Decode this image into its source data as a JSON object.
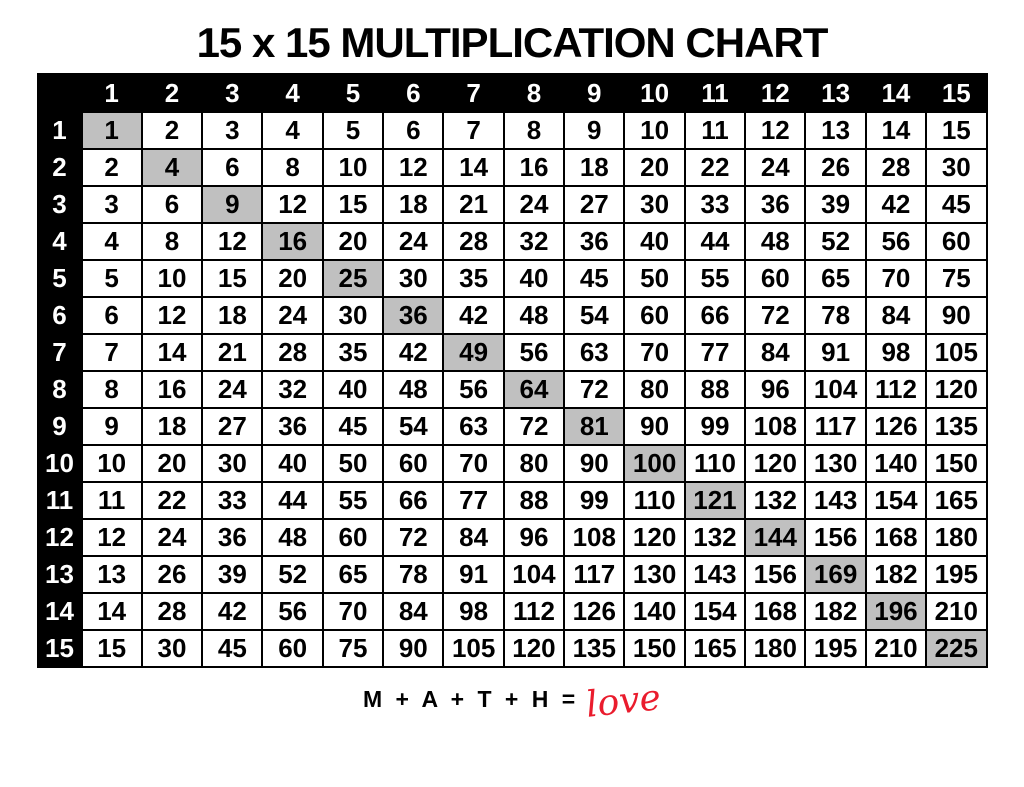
{
  "page": {
    "title": "15 x 15 MULTIPLICATION CHART"
  },
  "table": {
    "corner_label": "",
    "column_headers": [
      1,
      2,
      3,
      4,
      5,
      6,
      7,
      8,
      9,
      10,
      11,
      12,
      13,
      14,
      15
    ],
    "rows": [
      {
        "header": 1,
        "values": [
          1,
          2,
          3,
          4,
          5,
          6,
          7,
          8,
          9,
          10,
          11,
          12,
          13,
          14,
          15
        ]
      },
      {
        "header": 2,
        "values": [
          2,
          4,
          6,
          8,
          10,
          12,
          14,
          16,
          18,
          20,
          22,
          24,
          26,
          28,
          30
        ]
      },
      {
        "header": 3,
        "values": [
          3,
          6,
          9,
          12,
          15,
          18,
          21,
          24,
          27,
          30,
          33,
          36,
          39,
          42,
          45
        ]
      },
      {
        "header": 4,
        "values": [
          4,
          8,
          12,
          16,
          20,
          24,
          28,
          32,
          36,
          40,
          44,
          48,
          52,
          56,
          60
        ]
      },
      {
        "header": 5,
        "values": [
          5,
          10,
          15,
          20,
          25,
          30,
          35,
          40,
          45,
          50,
          55,
          60,
          65,
          70,
          75
        ]
      },
      {
        "header": 6,
        "values": [
          6,
          12,
          18,
          24,
          30,
          36,
          42,
          48,
          54,
          60,
          66,
          72,
          78,
          84,
          90
        ]
      },
      {
        "header": 7,
        "values": [
          7,
          14,
          21,
          28,
          35,
          42,
          49,
          56,
          63,
          70,
          77,
          84,
          91,
          98,
          105
        ]
      },
      {
        "header": 8,
        "values": [
          8,
          16,
          24,
          32,
          40,
          48,
          56,
          64,
          72,
          80,
          88,
          96,
          104,
          112,
          120
        ]
      },
      {
        "header": 9,
        "values": [
          9,
          18,
          27,
          36,
          45,
          54,
          63,
          72,
          81,
          90,
          99,
          108,
          117,
          126,
          135
        ]
      },
      {
        "header": 10,
        "values": [
          10,
          20,
          30,
          40,
          50,
          60,
          70,
          80,
          90,
          100,
          110,
          120,
          130,
          140,
          150
        ]
      },
      {
        "header": 11,
        "values": [
          11,
          22,
          33,
          44,
          55,
          66,
          77,
          88,
          99,
          110,
          121,
          132,
          143,
          154,
          165
        ]
      },
      {
        "header": 12,
        "values": [
          12,
          24,
          36,
          48,
          60,
          72,
          84,
          96,
          108,
          120,
          132,
          144,
          156,
          168,
          180
        ]
      },
      {
        "header": 13,
        "values": [
          13,
          26,
          39,
          52,
          65,
          78,
          91,
          104,
          117,
          130,
          143,
          156,
          169,
          182,
          195
        ]
      },
      {
        "header": 14,
        "values": [
          14,
          28,
          42,
          56,
          70,
          84,
          98,
          112,
          126,
          140,
          154,
          168,
          182,
          196,
          210
        ]
      },
      {
        "header": 15,
        "values": [
          15,
          30,
          45,
          60,
          75,
          90,
          105,
          120,
          135,
          150,
          165,
          180,
          195,
          210,
          225
        ]
      }
    ],
    "highlight_rule": "diagonal perfect squares",
    "colors": {
      "header_bg": "#000000",
      "header_text": "#ffffff",
      "cell_bg": "#ffffff",
      "cell_text": "#000000",
      "diagonal_bg": "#c0c0c0",
      "grid_line": "#000000"
    }
  },
  "footer": {
    "equation": "M + A + T + H =",
    "result_word": "love",
    "result_color": "#ea1c2d"
  }
}
